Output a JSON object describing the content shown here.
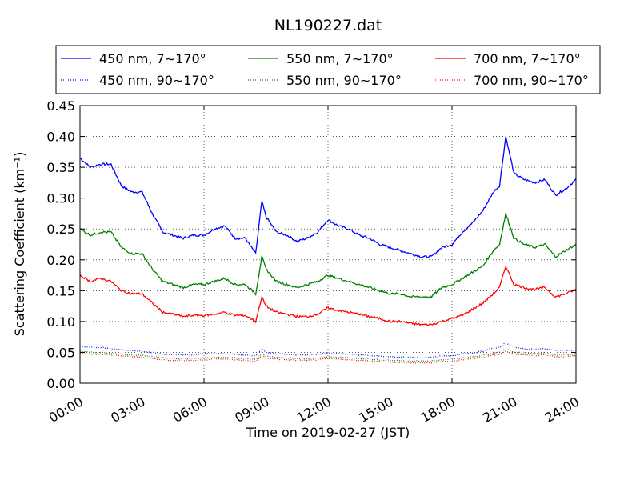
{
  "chart_data": {
    "type": "line",
    "title": "NL190227.dat",
    "xlabel": "Time on 2019-02-27 (JST)",
    "ylabel": "Scattering Coefficient (km⁻¹)",
    "xlim": [
      "00:00",
      "24:00"
    ],
    "ylim": [
      0.0,
      0.45
    ],
    "grid": true,
    "legend_position": "top",
    "legend_columns": 3,
    "x_ticks": [
      "00:00",
      "03:00",
      "06:00",
      "09:00",
      "12:00",
      "15:00",
      "18:00",
      "21:00",
      "24:00"
    ],
    "y_ticks": [
      "0.00",
      "0.05",
      "0.10",
      "0.15",
      "0.20",
      "0.25",
      "0.30",
      "0.35",
      "0.40",
      "0.45"
    ],
    "x_hours": [
      0,
      0.5,
      1,
      1.5,
      2,
      2.5,
      3,
      3.5,
      4,
      4.5,
      5,
      5.5,
      6,
      6.5,
      7,
      7.5,
      8,
      8.5,
      8.8,
      9,
      9.5,
      10,
      10.5,
      11,
      11.5,
      12,
      12.5,
      13,
      13.5,
      14,
      14.5,
      15,
      15.5,
      16,
      16.5,
      17,
      17.5,
      18,
      18.5,
      19,
      19.5,
      20,
      20.3,
      20.6,
      21,
      21.5,
      22,
      22.5,
      23,
      23.5,
      24
    ],
    "series": [
      {
        "name": "450 nm, 7∼170°",
        "color": "#0000ff",
        "style": "solid",
        "values": [
          0.365,
          0.35,
          0.355,
          0.355,
          0.32,
          0.31,
          0.31,
          0.275,
          0.245,
          0.24,
          0.235,
          0.24,
          0.24,
          0.25,
          0.255,
          0.235,
          0.235,
          0.21,
          0.295,
          0.27,
          0.245,
          0.24,
          0.23,
          0.235,
          0.245,
          0.265,
          0.255,
          0.25,
          0.24,
          0.235,
          0.225,
          0.22,
          0.215,
          0.21,
          0.205,
          0.205,
          0.22,
          0.225,
          0.245,
          0.26,
          0.28,
          0.31,
          0.32,
          0.4,
          0.34,
          0.33,
          0.325,
          0.33,
          0.305,
          0.315,
          0.33
        ]
      },
      {
        "name": "450 nm, 90∼170°",
        "color": "#0000ff",
        "style": "dotted",
        "values": [
          0.06,
          0.058,
          0.058,
          0.056,
          0.054,
          0.053,
          0.052,
          0.05,
          0.047,
          0.046,
          0.046,
          0.046,
          0.048,
          0.048,
          0.048,
          0.047,
          0.046,
          0.044,
          0.055,
          0.05,
          0.048,
          0.047,
          0.046,
          0.046,
          0.047,
          0.049,
          0.048,
          0.047,
          0.046,
          0.045,
          0.044,
          0.043,
          0.042,
          0.042,
          0.041,
          0.042,
          0.044,
          0.045,
          0.047,
          0.049,
          0.052,
          0.057,
          0.058,
          0.066,
          0.058,
          0.056,
          0.055,
          0.056,
          0.053,
          0.053,
          0.054
        ]
      },
      {
        "name": "550 nm, 7∼170°",
        "color": "#008000",
        "style": "solid",
        "values": [
          0.25,
          0.24,
          0.245,
          0.245,
          0.22,
          0.21,
          0.21,
          0.185,
          0.165,
          0.16,
          0.155,
          0.16,
          0.16,
          0.165,
          0.17,
          0.16,
          0.16,
          0.145,
          0.205,
          0.185,
          0.165,
          0.16,
          0.155,
          0.16,
          0.165,
          0.175,
          0.17,
          0.165,
          0.16,
          0.155,
          0.15,
          0.145,
          0.145,
          0.14,
          0.14,
          0.14,
          0.155,
          0.16,
          0.17,
          0.18,
          0.19,
          0.215,
          0.225,
          0.275,
          0.235,
          0.225,
          0.22,
          0.225,
          0.205,
          0.215,
          0.225
        ]
      },
      {
        "name": "550 nm, 90∼170°",
        "color": "#008000",
        "style": "dotted",
        "values": [
          0.052,
          0.05,
          0.05,
          0.049,
          0.047,
          0.046,
          0.045,
          0.043,
          0.041,
          0.04,
          0.04,
          0.04,
          0.041,
          0.042,
          0.042,
          0.041,
          0.04,
          0.038,
          0.048,
          0.044,
          0.042,
          0.041,
          0.04,
          0.04,
          0.041,
          0.043,
          0.042,
          0.041,
          0.04,
          0.039,
          0.038,
          0.037,
          0.037,
          0.036,
          0.036,
          0.036,
          0.038,
          0.039,
          0.041,
          0.043,
          0.045,
          0.049,
          0.05,
          0.056,
          0.05,
          0.049,
          0.048,
          0.049,
          0.046,
          0.046,
          0.047
        ]
      },
      {
        "name": "700 nm, 7∼170°",
        "color": "#ff0000",
        "style": "solid",
        "values": [
          0.175,
          0.165,
          0.17,
          0.165,
          0.15,
          0.145,
          0.145,
          0.13,
          0.115,
          0.112,
          0.108,
          0.11,
          0.11,
          0.112,
          0.115,
          0.11,
          0.11,
          0.1,
          0.14,
          0.125,
          0.115,
          0.112,
          0.108,
          0.108,
          0.112,
          0.122,
          0.118,
          0.115,
          0.112,
          0.108,
          0.105,
          0.1,
          0.1,
          0.097,
          0.095,
          0.095,
          0.1,
          0.105,
          0.11,
          0.12,
          0.13,
          0.145,
          0.155,
          0.19,
          0.16,
          0.155,
          0.152,
          0.155,
          0.14,
          0.145,
          0.152
        ]
      },
      {
        "name": "700 nm, 90∼170°",
        "color": "#ff0000",
        "style": "dotted",
        "values": [
          0.049,
          0.047,
          0.047,
          0.046,
          0.044,
          0.043,
          0.042,
          0.04,
          0.038,
          0.037,
          0.037,
          0.037,
          0.038,
          0.039,
          0.039,
          0.038,
          0.037,
          0.035,
          0.045,
          0.041,
          0.039,
          0.038,
          0.037,
          0.037,
          0.038,
          0.04,
          0.039,
          0.038,
          0.037,
          0.036,
          0.035,
          0.034,
          0.034,
          0.033,
          0.033,
          0.033,
          0.035,
          0.036,
          0.038,
          0.04,
          0.042,
          0.046,
          0.047,
          0.052,
          0.047,
          0.046,
          0.045,
          0.046,
          0.043,
          0.043,
          0.044
        ]
      }
    ]
  }
}
